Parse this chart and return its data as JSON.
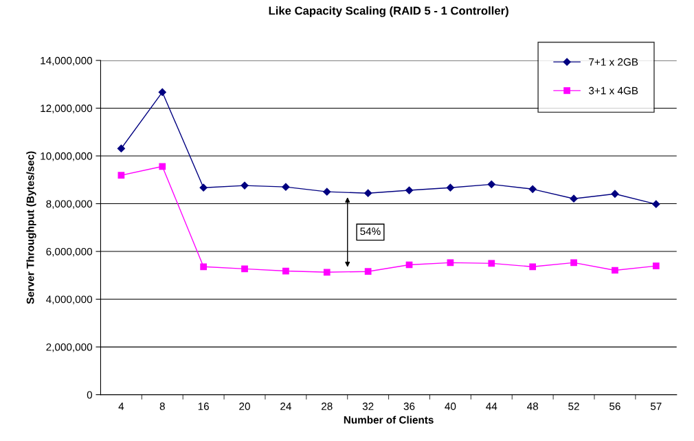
{
  "chart_data": {
    "type": "line",
    "title": "Like Capacity Scaling (RAID 5 - 1 Controller)",
    "xlabel": "Number of Clients",
    "ylabel": "Server Throughput (Bytes/sec)",
    "categories": [
      "4",
      "8",
      "16",
      "20",
      "24",
      "28",
      "32",
      "36",
      "40",
      "44",
      "48",
      "52",
      "56",
      "57"
    ],
    "series": [
      {
        "name": "7+1 x 2GB",
        "color": "#000080",
        "marker": "diamond",
        "values": [
          10310000,
          12670000,
          8670000,
          8760000,
          8700000,
          8500000,
          8440000,
          8560000,
          8670000,
          8810000,
          8610000,
          8210000,
          8410000,
          7980000
        ]
      },
      {
        "name": "3+1 x 4GB",
        "color": "#ff00ff",
        "marker": "square",
        "values": [
          9190000,
          9560000,
          5360000,
          5270000,
          5180000,
          5130000,
          5160000,
          5440000,
          5530000,
          5500000,
          5360000,
          5530000,
          5210000,
          5390000
        ]
      }
    ],
    "annotations": [
      "54%"
    ],
    "ylim": [
      0,
      14000000
    ],
    "yticks": [
      {
        "value": 0,
        "label": "0"
      },
      {
        "value": 2000000,
        "label": "2,000,000"
      },
      {
        "value": 4000000,
        "label": "4,000,000"
      },
      {
        "value": 6000000,
        "label": "6,000,000"
      },
      {
        "value": 8000000,
        "label": "8,000,000"
      },
      {
        "value": 10000000,
        "label": "10,000,000"
      },
      {
        "value": 12000000,
        "label": "12,000,000"
      },
      {
        "value": 14000000,
        "label": "14,000,000"
      }
    ],
    "grid": "y",
    "legend": "top right",
    "line_style": "solid"
  }
}
